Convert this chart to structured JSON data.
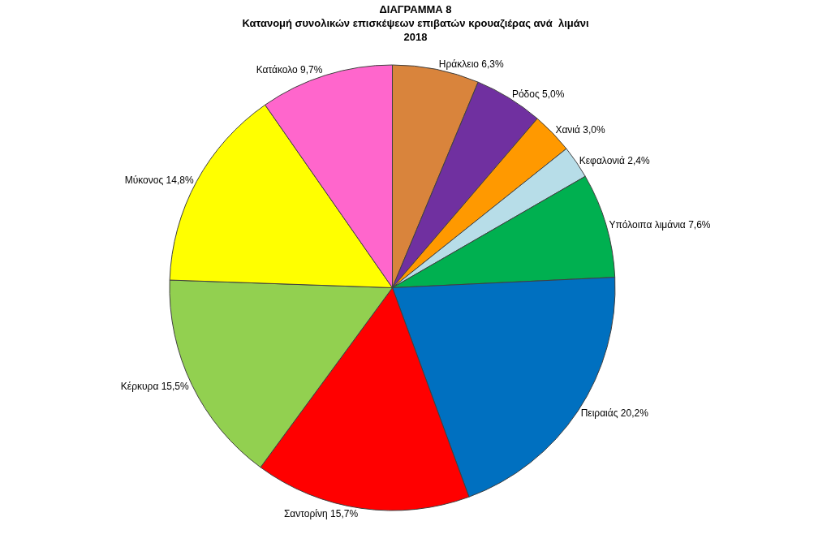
{
  "chart_data": {
    "type": "pie",
    "title": "ΔΙΑΓΡΑΜΜΑ 8\nΚατανομή συνολικών επισκέψεων επιβατών κρουαζιέρας ανά  λιμάνι\n2018",
    "categories": [
      "Ηράκλειο",
      "Ρόδος",
      "Χανιά",
      "Κεφαλονιά",
      "Υπόλοιπα λιμάνια",
      "Πειραιάς",
      "Σαντορίνη",
      "Κέρκυρα",
      "Μύκονος",
      "Κατάκολο"
    ],
    "values": [
      6.3,
      5.0,
      3.0,
      2.4,
      7.6,
      20.2,
      15.7,
      15.5,
      14.8,
      9.7
    ],
    "value_labels": [
      "6,3%",
      "5,0%",
      "3,0%",
      "2,4%",
      "7,6%",
      "20,2%",
      "15,7%",
      "15,5%",
      "14,8%",
      "9,7%"
    ],
    "colors": [
      "#d9843c",
      "#7030a0",
      "#ff9900",
      "#b7dde8",
      "#00b050",
      "#0070c0",
      "#ff0000",
      "#92d050",
      "#ffff00",
      "#ff66cc"
    ],
    "legend": false
  }
}
